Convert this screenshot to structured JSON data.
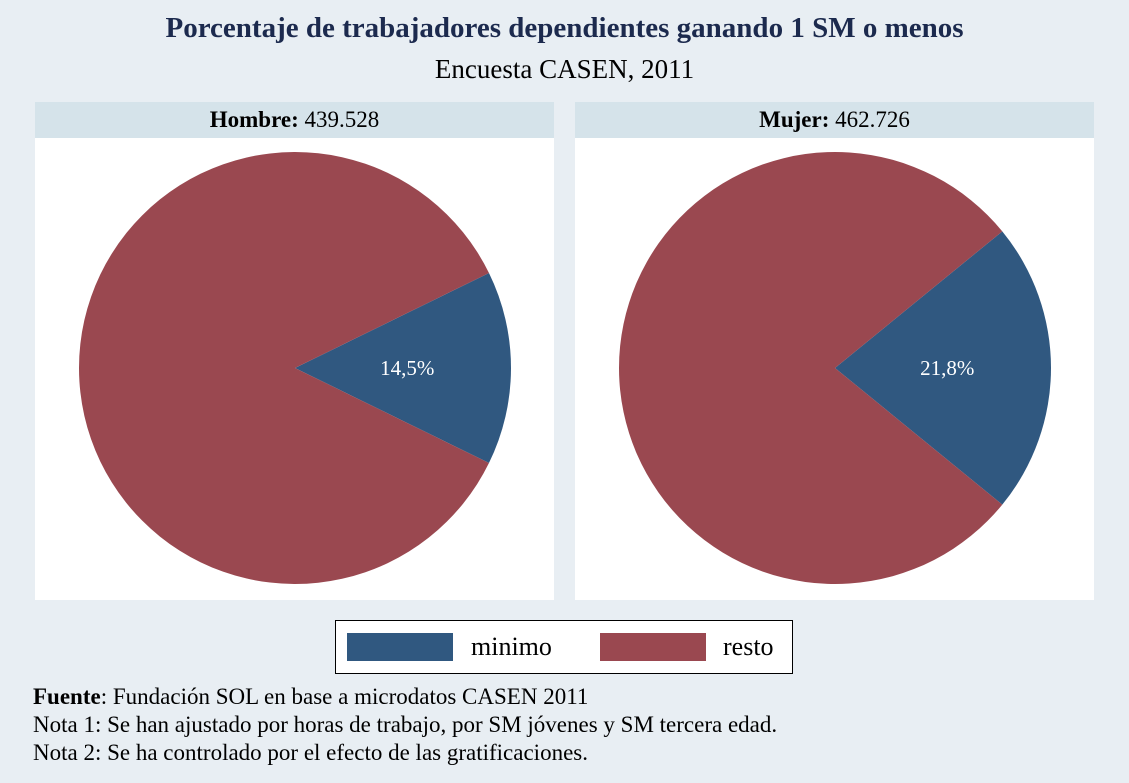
{
  "title": "Porcentaje de trabajadores dependientes ganando 1 SM o menos",
  "subtitle": "Encuesta CASEN, 2011",
  "colors": {
    "minimo": "#305880",
    "resto": "#9a4850"
  },
  "chart_data": [
    {
      "type": "pie",
      "panel_label": "Hombre:",
      "panel_value": "439.528",
      "slices": [
        {
          "name": "minimo",
          "value": 14.5,
          "label": "14,5%"
        },
        {
          "name": "resto",
          "value": 85.5
        }
      ]
    },
    {
      "type": "pie",
      "panel_label": "Mujer:",
      "panel_value": "462.726",
      "slices": [
        {
          "name": "minimo",
          "value": 21.8,
          "label": "21,8%"
        },
        {
          "name": "resto",
          "value": 78.2
        }
      ]
    }
  ],
  "legend": {
    "items": [
      "minimo",
      "resto"
    ],
    "placement": "bottom"
  },
  "footer": {
    "source_label": "Fuente",
    "source_text": ": Fundación SOL en base a microdatos CASEN 2011",
    "note1": "Nota 1: Se han ajustado por horas de trabajo, por SM jóvenes y SM tercera edad.",
    "note2": "Nota 2: Se ha controlado por el efecto de las gratificaciones."
  }
}
